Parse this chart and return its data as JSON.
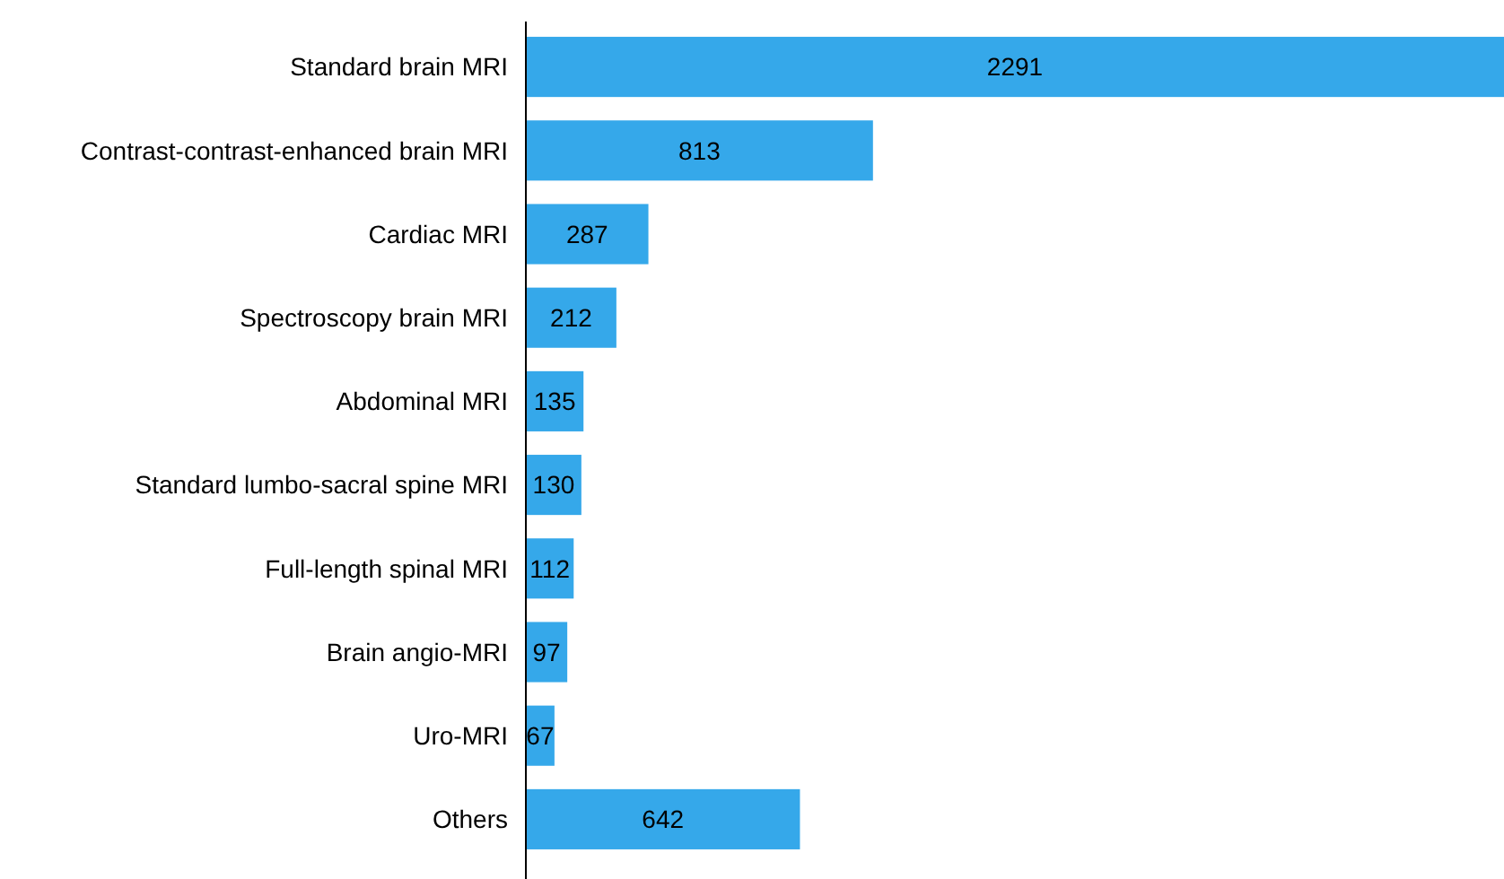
{
  "chart_data": {
    "type": "bar",
    "orientation": "horizontal",
    "categories": [
      "Standard brain MRI",
      "Contrast-contrast-enhanced brain MRI",
      "Cardiac MRI",
      "Spectroscopy brain MRI",
      "Abdominal MRI",
      "Standard lumbo-sacral spine MRI",
      "Full-length spinal MRI",
      "Brain angio-MRI",
      "Uro-MRI",
      "Others"
    ],
    "values": [
      2291,
      813,
      287,
      212,
      135,
      130,
      112,
      97,
      67,
      642
    ],
    "color": "#35a8ea",
    "data_labels": true
  }
}
